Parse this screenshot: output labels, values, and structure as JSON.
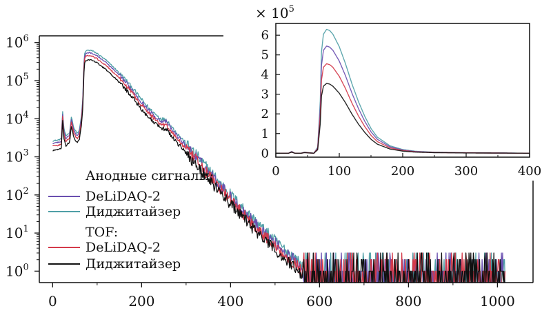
{
  "chart_data": [
    {
      "type": "line",
      "title": "",
      "xlabel": "",
      "ylabel": "",
      "yscale": "log",
      "xlim": [
        -30,
        1080
      ],
      "ylim": [
        0.5,
        1500000
      ],
      "xticks": [
        "0",
        "200",
        "400",
        "600",
        "800",
        "1000"
      ],
      "yticks": [
        {
          "value": 1,
          "base": "10",
          "exp": "0"
        },
        {
          "value": 10,
          "base": "10",
          "exp": "1"
        },
        {
          "value": 100,
          "base": "10",
          "exp": "2"
        },
        {
          "value": 1000,
          "base": "10",
          "exp": "3"
        },
        {
          "value": 10000,
          "base": "10",
          "exp": "4"
        },
        {
          "value": 100000,
          "base": "10",
          "exp": "5"
        },
        {
          "value": 1000000,
          "base": "10",
          "exp": "6"
        }
      ],
      "legend": {
        "placement": "left",
        "groups": [
          {
            "title": "Анодные сигналы:",
            "entries": [
              "DeLiDAQ-2",
              "Диджитайзер"
            ]
          },
          {
            "title": "TOF:",
            "entries": [
              "DeLiDAQ-2",
              "Диджитайзер"
            ]
          }
        ]
      },
      "series": [
        {
          "name": "DeLiDAQ-2",
          "group": "Анодные сигналы:",
          "color": "#6a4fb0",
          "peak_x": 80,
          "peak_y": 545000
        },
        {
          "name": "Диджитайзер",
          "group": "Анодные сигналы:",
          "color": "#4f9fa6",
          "peak_x": 80,
          "peak_y": 630000
        },
        {
          "name": "DeLiDAQ-2",
          "group": "TOF:",
          "color": "#d43a4a",
          "peak_x": 80,
          "peak_y": 455000
        },
        {
          "name": "Диджитайзер",
          "group": "TOF:",
          "color": "#111111",
          "peak_x": 80,
          "peak_y": 355000
        }
      ],
      "shape_points": {
        "x": [
          0,
          10,
          20,
          22,
          25,
          30,
          35,
          38,
          42,
          48,
          55,
          60,
          65,
          68,
          70,
          72,
          75,
          80,
          85,
          90,
          100,
          120,
          140,
          160,
          180,
          200,
          220,
          240,
          250,
          255,
          262,
          270,
          290,
          310,
          330,
          350,
          370,
          390,
          410,
          430,
          450,
          470,
          490,
          510,
          530,
          545,
          555,
          562
        ],
        "y_rel": [
          0.0042,
          0.0043,
          0.0047,
          0.03,
          0.009,
          0.0055,
          0.0065,
          0.0065,
          0.018,
          0.009,
          0.0065,
          0.008,
          0.02,
          0.06,
          0.4,
          0.82,
          0.96,
          1.0,
          0.99,
          0.95,
          0.82,
          0.55,
          0.33,
          0.19,
          0.1,
          0.05,
          0.027,
          0.017,
          0.015,
          0.0155,
          0.012,
          0.009,
          0.0048,
          0.0026,
          0.0014,
          0.00075,
          0.0004,
          0.00022,
          0.00012,
          6.8e-05,
          3.8e-05,
          2.2e-05,
          1.3e-05,
          7.8e-06,
          4.8e-06,
          3.5e-06,
          2.6e-06,
          2.2e-06
        ]
      },
      "noise_region": {
        "x_start": 565,
        "x_end": 1018,
        "y_min": 0.5,
        "y_max": 3
      }
    },
    {
      "type": "line",
      "placement": "top-right inset",
      "title": "",
      "xlabel": "",
      "ylabel": "",
      "yscale": "linear",
      "multiplier_label": "× 10",
      "multiplier_exp": "5",
      "xlim": [
        0,
        400
      ],
      "ylim": [
        -0.2,
        6.6
      ],
      "xticks": [
        "0",
        "100",
        "200",
        "300",
        "400"
      ],
      "yticks": [
        "0",
        "1",
        "2",
        "3",
        "4",
        "5",
        "6"
      ],
      "series": [
        {
          "name": "Диджитайзер",
          "group": "Анодные сигналы:",
          "color": "#4f9fa6",
          "peak": 6.3
        },
        {
          "name": "DeLiDAQ-2",
          "group": "Анодные сигналы:",
          "color": "#6a4fb0",
          "peak": 5.45
        },
        {
          "name": "DeLiDAQ-2",
          "group": "TOF:",
          "color": "#d43a4a",
          "peak": 4.55
        },
        {
          "name": "Диджитайзер",
          "group": "TOF:",
          "color": "#111111",
          "peak": 3.55
        }
      ],
      "shape_points": {
        "x": [
          0,
          20,
          25,
          30,
          40,
          45,
          60,
          66,
          70,
          72,
          75,
          80,
          85,
          90,
          100,
          110,
          120,
          130,
          140,
          150,
          160,
          180,
          200,
          220,
          250,
          300,
          350,
          400
        ],
        "y_rel": [
          0.0,
          0.0,
          0.015,
          0.0,
          0.0,
          0.008,
          0.0,
          0.05,
          0.42,
          0.82,
          0.96,
          1.0,
          0.99,
          0.96,
          0.86,
          0.72,
          0.56,
          0.42,
          0.3,
          0.2,
          0.13,
          0.06,
          0.03,
          0.016,
          0.008,
          0.004,
          0.002,
          0.0
        ]
      }
    }
  ]
}
